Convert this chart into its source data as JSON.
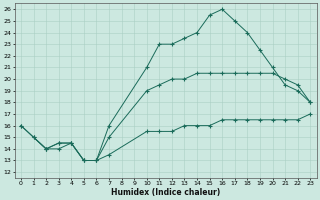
{
  "xlabel": "Humidex (Indice chaleur)",
  "bg_color": "#cce8e0",
  "grid_color": "#aacfc4",
  "line_color": "#1a6b5a",
  "xlim": [
    -0.5,
    23.5
  ],
  "ylim": [
    11.5,
    26.5
  ],
  "xticks": [
    0,
    1,
    2,
    3,
    4,
    5,
    6,
    7,
    8,
    9,
    10,
    11,
    12,
    13,
    14,
    15,
    16,
    17,
    18,
    19,
    20,
    21,
    22,
    23
  ],
  "yticks": [
    12,
    13,
    14,
    15,
    16,
    17,
    18,
    19,
    20,
    21,
    22,
    23,
    24,
    25,
    26
  ],
  "curve1_x": [
    0,
    1,
    2,
    3,
    4,
    5,
    6,
    7,
    10,
    11,
    12,
    13,
    14,
    15,
    16,
    17,
    18,
    19,
    20,
    21,
    22,
    23
  ],
  "curve1_y": [
    16,
    15,
    14,
    14,
    14.5,
    13,
    13,
    13.5,
    15.5,
    15.5,
    15.5,
    16,
    16,
    16,
    16.5,
    16.5,
    16.5,
    16.5,
    16.5,
    16.5,
    16.5,
    17
  ],
  "curve2_x": [
    1,
    2,
    3,
    4,
    5,
    6,
    7,
    10,
    11,
    12,
    13,
    14,
    15,
    16,
    17,
    18,
    19,
    20,
    21,
    22,
    23
  ],
  "curve2_y": [
    15,
    14,
    14.5,
    14.5,
    13,
    13,
    15,
    19,
    19.5,
    20,
    20,
    20.5,
    20.5,
    20.5,
    20.5,
    20.5,
    20.5,
    20.5,
    20,
    19.5,
    18
  ],
  "curve3_x": [
    0,
    2,
    3,
    4,
    5,
    6,
    7,
    10,
    11,
    12,
    13,
    14,
    15,
    16,
    17,
    18,
    19,
    20,
    21,
    22,
    23
  ],
  "curve3_y": [
    16,
    14,
    14.5,
    14.5,
    13,
    13,
    16,
    21,
    23,
    23,
    23.5,
    24,
    25.5,
    26,
    25,
    24,
    22.5,
    21,
    19.5,
    19,
    18
  ]
}
